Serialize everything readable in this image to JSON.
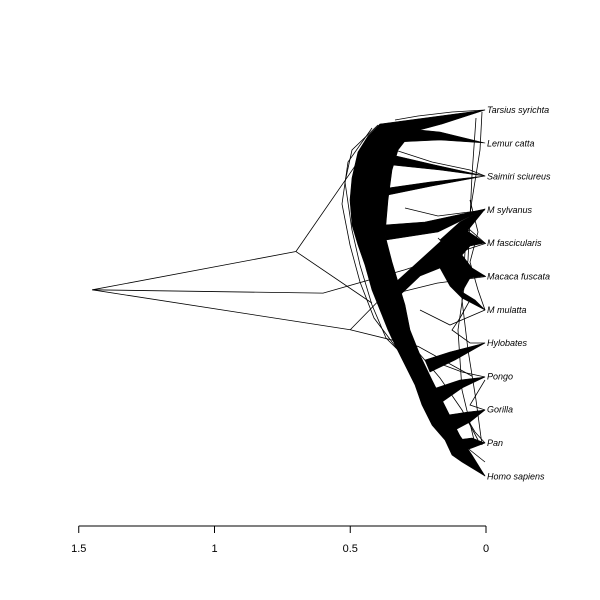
{
  "chart_data": {
    "type": "phylogeny-densitree",
    "orientation": "tips-right",
    "colors": {
      "background": "#ffffff",
      "ink": "#000000"
    },
    "x_axis": {
      "range": [
        1.5,
        0
      ],
      "ticks": [
        {
          "value": 1.5,
          "label": "1.5"
        },
        {
          "value": 1,
          "label": "1"
        },
        {
          "value": 0.5,
          "label": "0.5"
        },
        {
          "value": 0,
          "label": "0"
        }
      ]
    },
    "taxa": [
      "Tarsius syrichta",
      "Lemur catta",
      "Saimiri sciureus",
      "M sylvanus",
      "M fascicularis",
      "Macaca fuscata",
      "M mulatta",
      "Hylobates",
      "Pongo",
      "Gorilla",
      "Pan",
      "Homo sapiens"
    ],
    "outlier_trees": [
      {
        "root_depth": 1.45,
        "nodes": [
          {
            "depth": 0.7,
            "order": 4.25
          },
          {
            "depth": 0.5,
            "order": 6.6
          }
        ]
      }
    ]
  }
}
